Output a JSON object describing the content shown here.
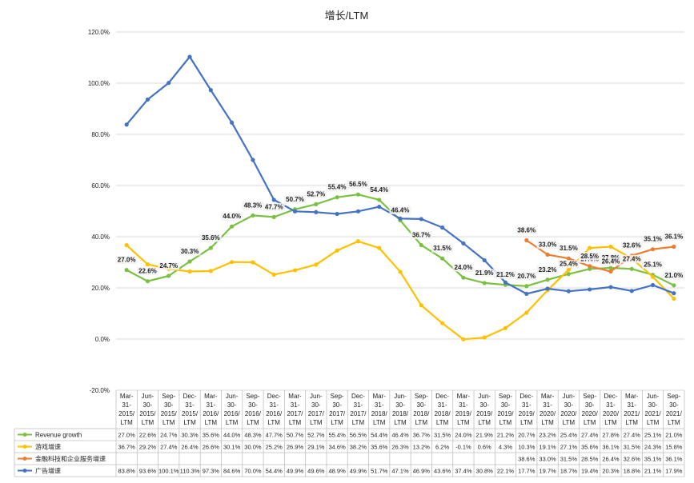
{
  "chart_data": {
    "type": "line",
    "title": "增长/LTM",
    "categories": [
      [
        "Mar-",
        "31-",
        "2015/",
        "LTM"
      ],
      [
        "Jun-",
        "30-",
        "2015/",
        "LTM"
      ],
      [
        "Sep-",
        "30-",
        "2015/",
        "LTM"
      ],
      [
        "Dec-",
        "31-",
        "2015/",
        "LTM"
      ],
      [
        "Mar-",
        "31-",
        "2016/",
        "LTM"
      ],
      [
        "Jun-",
        "30-",
        "2016/",
        "LTM"
      ],
      [
        "Sep-",
        "30-",
        "2016/",
        "LTM"
      ],
      [
        "Dec-",
        "31-",
        "2016/",
        "LTM"
      ],
      [
        "Mar-",
        "31-",
        "2017/",
        "LTM"
      ],
      [
        "Jun-",
        "30-",
        "2017/",
        "LTM"
      ],
      [
        "Sep-",
        "30-",
        "2017/",
        "LTM"
      ],
      [
        "Dec-",
        "31-",
        "2017/",
        "LTM"
      ],
      [
        "Mar-",
        "31-",
        "2018/",
        "LTM"
      ],
      [
        "Jun-",
        "30-",
        "2018/",
        "LTM"
      ],
      [
        "Sep-",
        "30-",
        "2018/",
        "LTM"
      ],
      [
        "Dec-",
        "31-",
        "2018/",
        "LTM"
      ],
      [
        "Mar-",
        "31-",
        "2019/",
        "LTM"
      ],
      [
        "Jun-",
        "30-",
        "2019/",
        "LTM"
      ],
      [
        "Sep-",
        "30-",
        "2019/",
        "LTM"
      ],
      [
        "Dec-",
        "31-",
        "2019/",
        "LTM"
      ],
      [
        "Mar-",
        "31-",
        "2020/",
        "LTM"
      ],
      [
        "Jun-",
        "30-",
        "2020/",
        "LTM"
      ],
      [
        "Sep-",
        "30-",
        "2020/",
        "LTM"
      ],
      [
        "Dec-",
        "31-",
        "2020/",
        "LTM"
      ],
      [
        "Mar-",
        "31-",
        "2021/",
        "LTM"
      ],
      [
        "Jun-",
        "30-",
        "2021/",
        "LTM"
      ],
      [
        "Sep-",
        "30-",
        "2021/",
        "LTM"
      ]
    ],
    "y_ticks": [
      "120.0%",
      "100.0%",
      "80.0%",
      "60.0%",
      "40.0%",
      "20.0%",
      "0.0%",
      "-20.0%"
    ],
    "ylim": [
      -20,
      120
    ],
    "grid": true,
    "legend": "data-table",
    "series": [
      {
        "name": "Revenue growth",
        "color": "#7ac142",
        "point_labels": true,
        "values": [
          27.0,
          22.6,
          24.7,
          30.3,
          35.6,
          44.0,
          48.3,
          47.7,
          50.7,
          52.7,
          55.4,
          56.5,
          54.4,
          46.4,
          36.7,
          31.5,
          24.0,
          21.9,
          21.2,
          20.7,
          23.2,
          25.4,
          27.4,
          27.8,
          27.4,
          25.1,
          21.0
        ],
        "table": [
          "27.0%",
          "22.6%",
          "24.7%",
          "30.3%",
          "35.6%",
          "44.0%",
          "48.3%",
          "47.7%",
          "50.7%",
          "52.7%",
          "55.4%",
          "56.5%",
          "54.4%",
          "46.4%",
          "36.7%",
          "31.5%",
          "24.0%",
          "21.9%",
          "21.2%",
          "20.7%",
          "23.2%",
          "25.4%",
          "27.4%",
          "27.8%",
          "27.4%",
          "25.1%",
          "21.0%"
        ]
      },
      {
        "name": "游戏增速",
        "color": "#ffc000",
        "point_labels": false,
        "values": [
          36.7,
          29.2,
          27.4,
          26.4,
          26.6,
          30.1,
          30.0,
          25.2,
          26.9,
          29.1,
          34.6,
          38.2,
          35.6,
          26.3,
          13.2,
          6.2,
          -0.1,
          0.6,
          4.3,
          10.3,
          19.1,
          27.1,
          35.6,
          36.1,
          31.5,
          24.3,
          15.8
        ],
        "table": [
          "36.7%",
          "29.2%",
          "27.4%",
          "26.4%",
          "26.6%",
          "30.1%",
          "30.0%",
          "25.2%",
          "26.9%",
          "29.1%",
          "34.6%",
          "38.2%",
          "35.6%",
          "26.3%",
          "13.2%",
          "6.2%",
          "-0.1%",
          "0.6%",
          "4.3%",
          "10.3%",
          "19.1%",
          "27.1%",
          "35.6%",
          "36.1%",
          "31.5%",
          "24.3%",
          "15.8%"
        ]
      },
      {
        "name": "金融科技和企业服务增速",
        "color": "#ed7d31",
        "point_labels": true,
        "values": [
          null,
          null,
          null,
          null,
          null,
          null,
          null,
          null,
          null,
          null,
          null,
          null,
          null,
          null,
          null,
          null,
          null,
          null,
          null,
          38.6,
          33.0,
          31.5,
          28.5,
          26.4,
          32.6,
          35.1,
          36.1
        ],
        "table": [
          "",
          "",
          "",
          "",
          "",
          "",
          "",
          "",
          "",
          "",
          "",
          "",
          "",
          "",
          "",
          "",
          "",
          "",
          "",
          "38.6%",
          "33.0%",
          "31.5%",
          "28.5%",
          "26.4%",
          "32.6%",
          "35.1%",
          "36.1%"
        ]
      },
      {
        "name": "广告增速",
        "color": "#4472c4",
        "point_labels": false,
        "values": [
          83.8,
          93.6,
          100.1,
          110.3,
          97.3,
          84.6,
          70.0,
          54.4,
          49.9,
          49.6,
          48.9,
          49.9,
          51.7,
          47.1,
          46.9,
          43.6,
          37.4,
          30.8,
          22.1,
          17.7,
          19.7,
          18.7,
          19.4,
          20.3,
          18.8,
          21.1,
          17.9
        ],
        "table": [
          "83.8%",
          "93.6%",
          "100.1%",
          "110.3%",
          "97.3%",
          "84.6%",
          "70.0%",
          "54.4%",
          "49.9%",
          "49.6%",
          "48.9%",
          "49.9%",
          "51.7%",
          "47.1%",
          "46.9%",
          "43.6%",
          "37.4%",
          "30.8%",
          "22.1%",
          "17.7%",
          "19.7%",
          "18.7%",
          "19.4%",
          "20.3%",
          "18.8%",
          "21.1%",
          "17.9%"
        ]
      }
    ]
  }
}
